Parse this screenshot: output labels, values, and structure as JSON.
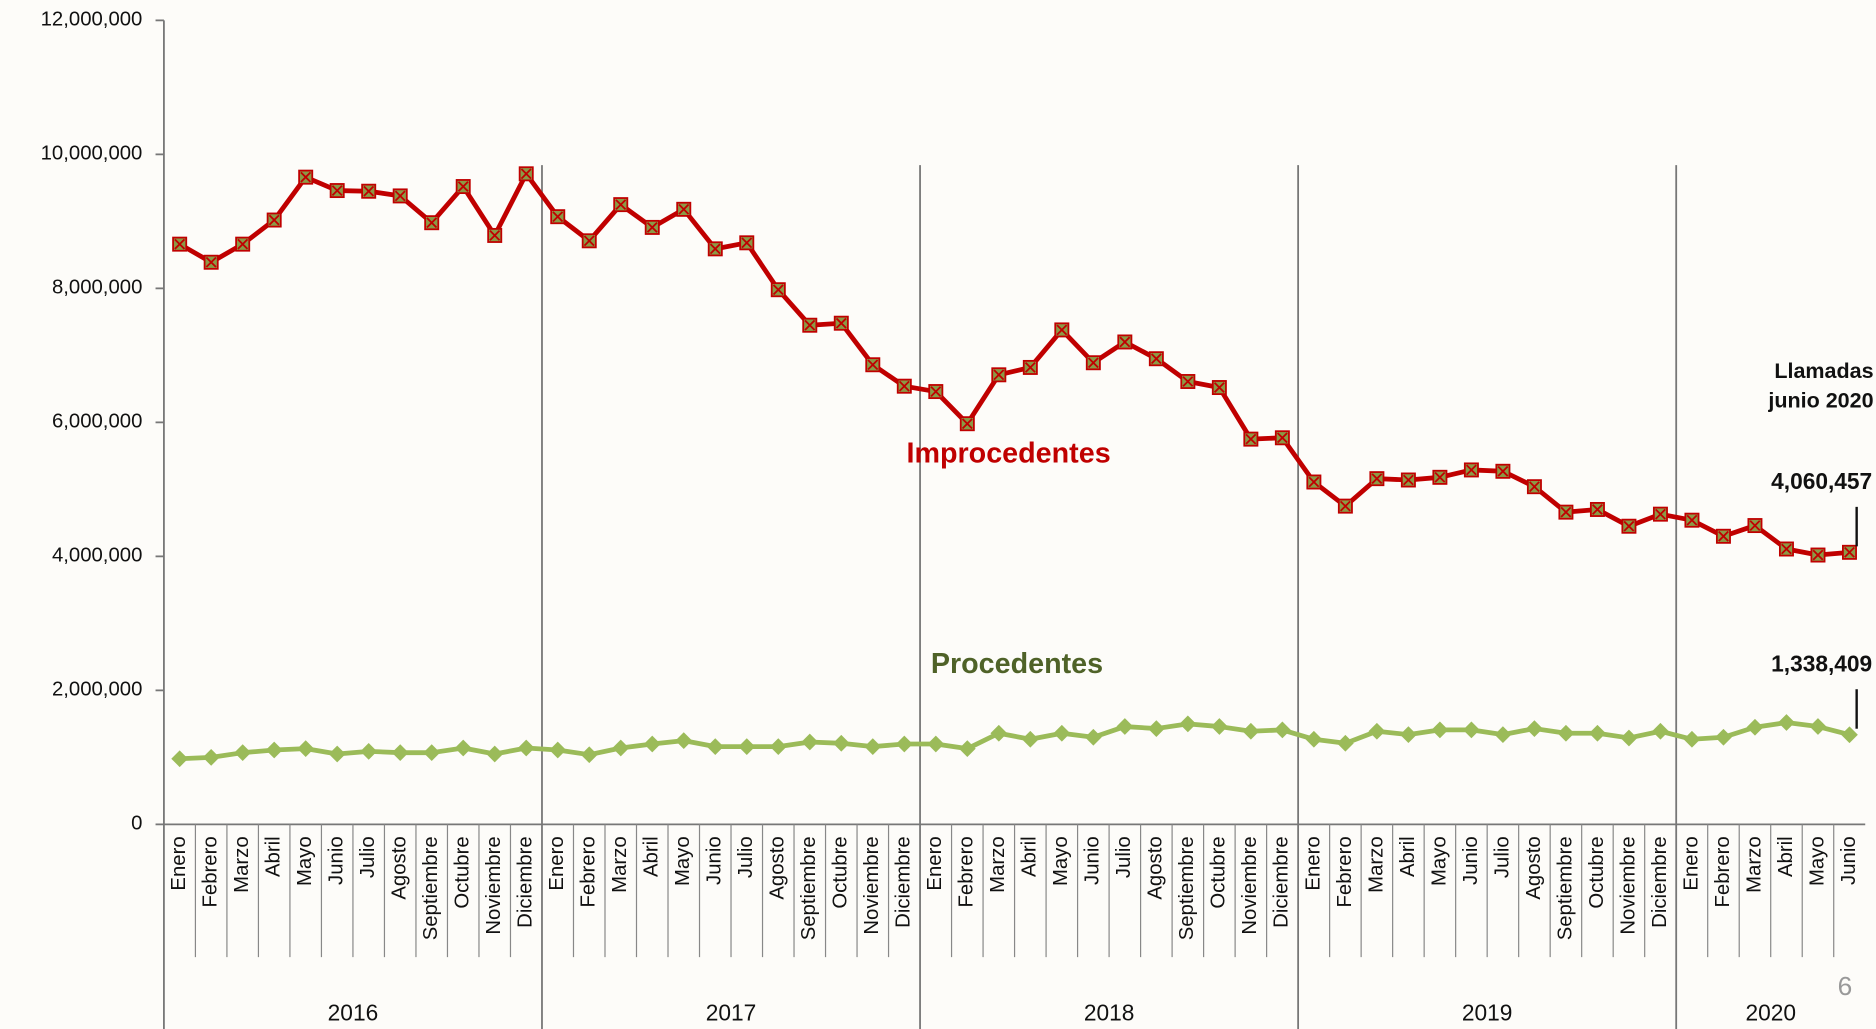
{
  "chart_data": {
    "type": "line",
    "categories": [
      "Enero",
      "Febrero",
      "Marzo",
      "Abril",
      "Mayo",
      "Junio",
      "Julio",
      "Agosto",
      "Septiembre",
      "Octubre",
      "Noviembre",
      "Diciembre",
      "Enero",
      "Febrero",
      "Marzo",
      "Abril",
      "Mayo",
      "Junio",
      "Julio",
      "Agosto",
      "Septiembre",
      "Octubre",
      "Noviembre",
      "Diciembre",
      "Enero",
      "Febrero",
      "Marzo",
      "Abril",
      "Mayo",
      "Junio",
      "Julio",
      "Agosto",
      "Septiembre",
      "Octubre",
      "Noviembre",
      "Diciembre",
      "Enero",
      "Febrero",
      "Marzo",
      "Abril",
      "Mayo",
      "Junio",
      "Julio",
      "Agosto",
      "Septiembre",
      "Octubre",
      "Noviembre",
      "Diciembre",
      "Enero",
      "Febrero",
      "Marzo",
      "Abril",
      "Mayo",
      "Junio"
    ],
    "years": [
      "2016",
      "2017",
      "2018",
      "2019",
      "2020"
    ],
    "series": [
      {
        "name": "Improcedentes",
        "color": "#c00000",
        "marker": "square",
        "marker_color": "#8b9a46",
        "values": [
          8660000,
          8390000,
          8660000,
          9020000,
          9660000,
          9460000,
          9450000,
          9380000,
          8980000,
          9520000,
          8790000,
          9710000,
          9070000,
          8710000,
          9250000,
          8910000,
          9180000,
          8590000,
          8680000,
          7980000,
          7450000,
          7480000,
          6860000,
          6540000,
          6460000,
          5980000,
          6710000,
          6820000,
          7380000,
          6890000,
          7200000,
          6950000,
          6610000,
          6520000,
          5750000,
          5770000,
          5110000,
          4750000,
          5160000,
          5140000,
          5180000,
          5290000,
          5270000,
          5040000,
          4660000,
          4700000,
          4450000,
          4630000,
          4540000,
          4300000,
          4460000,
          4110000,
          4020000,
          4060457
        ],
        "value_labels": [
          null,
          null,
          null,
          null,
          null,
          null,
          null,
          null,
          null,
          null,
          null,
          null,
          null,
          null,
          null,
          null,
          null,
          null,
          null,
          null,
          null,
          null,
          null,
          null,
          null,
          null,
          null,
          null,
          null,
          null,
          null,
          null,
          null,
          null,
          null,
          null,
          null,
          null,
          null,
          null,
          null,
          null,
          null,
          null,
          null,
          null,
          null,
          null,
          null,
          null,
          null,
          null,
          null,
          "4,060,457"
        ]
      },
      {
        "name": "Procedentes",
        "color": "#9bbb59",
        "marker": "diamond",
        "marker_color": "#9bbb59",
        "values": [
          980000,
          1000000,
          1070000,
          1110000,
          1130000,
          1050000,
          1090000,
          1070000,
          1070000,
          1140000,
          1050000,
          1140000,
          1110000,
          1040000,
          1140000,
          1200000,
          1250000,
          1160000,
          1160000,
          1160000,
          1230000,
          1210000,
          1160000,
          1200000,
          1200000,
          1130000,
          1360000,
          1270000,
          1360000,
          1300000,
          1460000,
          1430000,
          1500000,
          1460000,
          1390000,
          1410000,
          1270000,
          1210000,
          1390000,
          1340000,
          1410000,
          1410000,
          1340000,
          1430000,
          1360000,
          1360000,
          1290000,
          1390000,
          1270000,
          1300000,
          1450000,
          1520000,
          1460000,
          1338409
        ],
        "value_labels": [
          null,
          null,
          null,
          null,
          null,
          null,
          null,
          null,
          null,
          null,
          null,
          null,
          null,
          null,
          null,
          null,
          null,
          null,
          null,
          null,
          null,
          null,
          null,
          null,
          null,
          null,
          null,
          null,
          null,
          null,
          null,
          null,
          null,
          null,
          null,
          null,
          null,
          null,
          null,
          null,
          null,
          null,
          null,
          null,
          null,
          null,
          null,
          null,
          null,
          null,
          null,
          null,
          null,
          "1,338,409"
        ]
      }
    ],
    "annotation": [
      "Llamadas",
      "junio 2020"
    ],
    "page_number": "6",
    "ylim": [
      0,
      12000000
    ],
    "yticks": [
      0,
      {
        "value": 2000000,
        "label": "2,000,000"
      },
      {
        "value": 4000000,
        "label": "4,000,000"
      },
      {
        "value": 6000000,
        "label": "6,000,000"
      },
      {
        "value": 8000000,
        "label": "8,000,000"
      },
      {
        "value": 10000000,
        "label": "10,000,000"
      },
      {
        "value": 12000000,
        "label": "12,000,000"
      }
    ],
    "grid": false
  }
}
